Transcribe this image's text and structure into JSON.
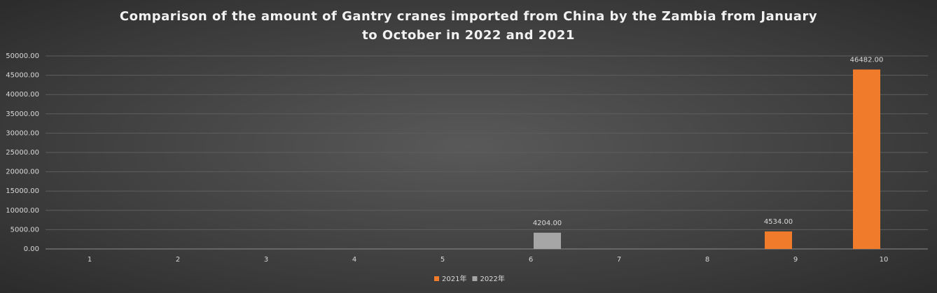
{
  "chart_data": {
    "type": "bar",
    "title": "Comparison of the amount of Gantry cranes imported from China by the Zambia from January to October in 2022 and 2021",
    "categories": [
      "1",
      "2",
      "3",
      "4",
      "5",
      "6",
      "7",
      "8",
      "9",
      "10"
    ],
    "series": [
      {
        "name": "2021年",
        "color": "#f07b2a",
        "values": [
          null,
          null,
          null,
          null,
          null,
          null,
          null,
          null,
          4534,
          46482
        ],
        "value_labels": [
          null,
          null,
          null,
          null,
          null,
          null,
          null,
          null,
          "4534.00",
          "46482.00"
        ]
      },
      {
        "name": "2022年",
        "color": "#a6a6a6",
        "values": [
          null,
          null,
          null,
          null,
          null,
          4204,
          null,
          null,
          null,
          null
        ],
        "value_labels": [
          null,
          null,
          null,
          null,
          null,
          "4204.00",
          null,
          null,
          null,
          null
        ]
      }
    ],
    "ylim": [
      0,
      50000
    ],
    "yticks": [
      {
        "value": 0,
        "label": "0.00"
      },
      {
        "value": 5000,
        "label": "5000.00"
      },
      {
        "value": 10000,
        "label": "10000.00"
      },
      {
        "value": 15000,
        "label": "15000.00"
      },
      {
        "value": 20000,
        "label": "20000.00"
      },
      {
        "value": 25000,
        "label": "25000.00"
      },
      {
        "value": 30000,
        "label": "30000.00"
      },
      {
        "value": 35000,
        "label": "35000.00"
      },
      {
        "value": 40000,
        "label": "40000.00"
      },
      {
        "value": 45000,
        "label": "45000.00"
      },
      {
        "value": 50000,
        "label": "50000.00"
      }
    ],
    "grid": true,
    "legend": "bottom"
  }
}
